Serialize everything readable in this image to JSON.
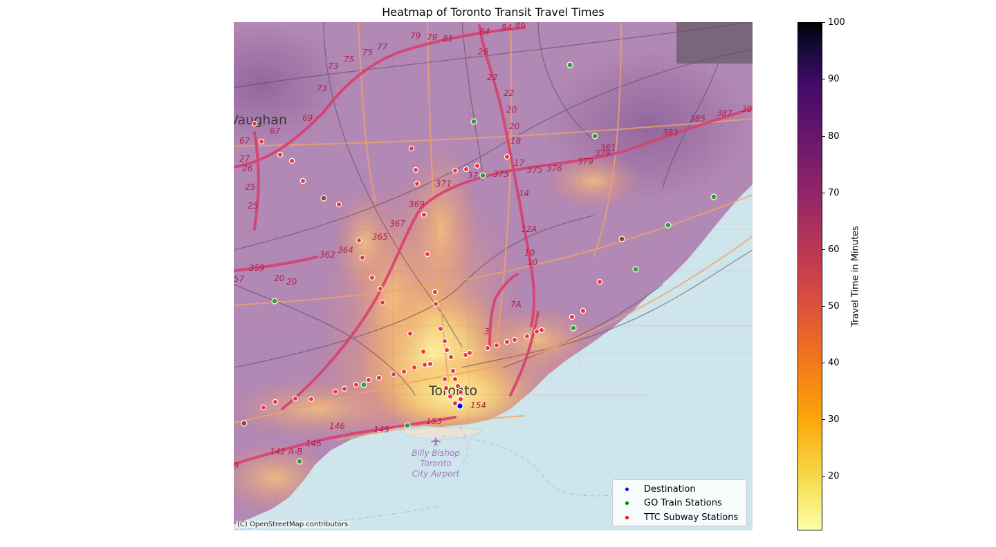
{
  "title": "Heatmap of Toronto Transit Travel Times",
  "attribution": "(C) OpenStreetMap contributors",
  "basemap_labels": {
    "places": [
      "Vaughan",
      "Toronto"
    ],
    "airport": [
      "Billy Bishop",
      "Toronto",
      "City Airport"
    ],
    "road_numbers": [
      "79",
      "79",
      "81",
      "84",
      "84",
      "86",
      "77",
      "75",
      "75",
      "73",
      "73",
      "26",
      "22",
      "22",
      "20",
      "20",
      "18",
      "17",
      "67",
      "69",
      "67",
      "27",
      "26",
      "25",
      "25",
      "371",
      "37",
      "375",
      "375",
      "376",
      "379",
      "379",
      "381",
      "383",
      "385",
      "387",
      "38",
      "369",
      "367",
      "365",
      "364",
      "362",
      "359",
      "20",
      "20",
      "57",
      "14",
      "12A",
      "10",
      "10",
      "7A",
      "3",
      "154",
      "153",
      "149",
      "146",
      "146",
      "142 A-B",
      "9"
    ]
  },
  "legend": {
    "items": [
      {
        "label": "Destination",
        "color": "#0000ff"
      },
      {
        "label": "GO Train Stations",
        "color": "#008000"
      },
      {
        "label": "TTC Subway Stations",
        "color": "#ff0000"
      }
    ]
  },
  "colorbar": {
    "label": "Travel Time in Minutes",
    "colormap": "inferno_r",
    "min": 10,
    "max": 100,
    "ticks": [
      "100",
      "90",
      "80",
      "70",
      "60",
      "50",
      "40",
      "30",
      "20"
    ]
  },
  "colors": {
    "water": "#cfe5ec",
    "land": "#efe9e1",
    "highway": "#d8406e",
    "arterial": "#f5a35a"
  }
}
